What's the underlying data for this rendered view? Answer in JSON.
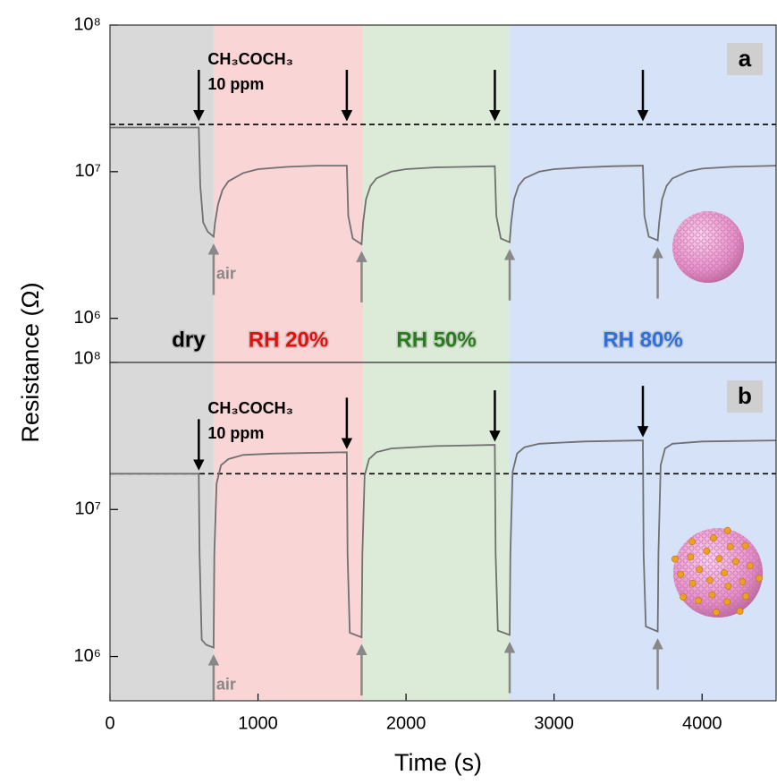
{
  "axis_labels": {
    "x": "Time (s)",
    "y": "Resistance (Ω)"
  },
  "chart_data": [
    {
      "type": "line",
      "panel_label": "a",
      "scale": "log",
      "xlim": [
        0,
        4500
      ],
      "ylim": [
        500000,
        100000000
      ],
      "yticks": [
        {
          "value": 1000000,
          "label": "10⁶"
        },
        {
          "value": 10000000,
          "label": "10⁷"
        },
        {
          "value": 100000000,
          "label": "10⁸"
        }
      ],
      "regions": [
        {
          "label": "dry",
          "start": 0,
          "end": 700,
          "color": "#d9d9d9",
          "label_color": "#000000"
        },
        {
          "label": "RH 20%",
          "start": 700,
          "end": 1710,
          "color": "#f9d5d5",
          "label_color": "#e01010"
        },
        {
          "label": "RH 50%",
          "start": 1710,
          "end": 2700,
          "color": "#dcebd8",
          "label_color": "#2a7a20"
        },
        {
          "label": "RH 80%",
          "start": 2700,
          "end": 4500,
          "color": "#d6e2f7",
          "label_color": "#2f6fd6"
        }
      ],
      "reference_line": 21000000,
      "gas_on": [
        600,
        1600,
        2600,
        3600
      ],
      "gas_off": [
        700,
        1700,
        2700,
        3700
      ],
      "annotations": {
        "gas": "CH₃COCH₃",
        "concentration": "10 ppm",
        "air": "air"
      },
      "x": [
        0,
        500,
        600,
        610,
        630,
        660,
        700,
        710,
        730,
        760,
        800,
        900,
        1000,
        1200,
        1400,
        1600,
        1610,
        1640,
        1700,
        1710,
        1730,
        1760,
        1800,
        1900,
        2000,
        2200,
        2400,
        2600,
        2610,
        2640,
        2700,
        2710,
        2730,
        2760,
        2800,
        2900,
        3000,
        3200,
        3400,
        3600,
        3610,
        3640,
        3700,
        3710,
        3730,
        3760,
        3800,
        3900,
        4000,
        4200,
        4500
      ],
      "series": [
        {
          "color": "#707070",
          "values": [
            20000000,
            20000000,
            20000000,
            8000000,
            4500000,
            3900000,
            3600000,
            4500000,
            6000000,
            7500000,
            8600000,
            9800000,
            10400000,
            10800000,
            11000000,
            11000000,
            5000000,
            3500000,
            3200000,
            4500000,
            6500000,
            8000000,
            9000000,
            10000000,
            10400000,
            10700000,
            10800000,
            10900000,
            5000000,
            3500000,
            3300000,
            4500000,
            6500000,
            8000000,
            9000000,
            10000000,
            10400000,
            10700000,
            10900000,
            11000000,
            5000000,
            3600000,
            3400000,
            4500000,
            6500000,
            8000000,
            9000000,
            10000000,
            10500000,
            10800000,
            11000000
          ]
        }
      ]
    },
    {
      "type": "line",
      "panel_label": "b",
      "scale": "log",
      "xlim": [
        0,
        4500
      ],
      "ylim": [
        500000,
        100000000
      ],
      "xticks": [
        0,
        1000,
        2000,
        3000,
        4000
      ],
      "yticks": [
        {
          "value": 1000000,
          "label": "10⁶"
        },
        {
          "value": 10000000,
          "label": "10⁷"
        },
        {
          "value": 100000000,
          "label": "10⁸"
        }
      ],
      "regions": [
        {
          "start": 0,
          "end": 700,
          "color": "#d9d9d9"
        },
        {
          "start": 700,
          "end": 1710,
          "color": "#f9d5d5"
        },
        {
          "start": 1710,
          "end": 2700,
          "color": "#dcebd8"
        },
        {
          "start": 2700,
          "end": 4500,
          "color": "#d6e2f7"
        }
      ],
      "reference_line": 17500000,
      "gas_on": [
        600,
        1600,
        2600,
        3600
      ],
      "gas_off": [
        700,
        1700,
        2700,
        3700
      ],
      "annotations": {
        "gas": "CH₃COCH₃",
        "concentration": "10 ppm",
        "air": "air"
      },
      "x": [
        0,
        600,
        605,
        620,
        650,
        700,
        705,
        720,
        750,
        800,
        900,
        1100,
        1600,
        1605,
        1620,
        1700,
        1705,
        1720,
        1750,
        1800,
        1900,
        2200,
        2600,
        2605,
        2620,
        2700,
        2705,
        2720,
        2750,
        2800,
        2900,
        3200,
        3600,
        3605,
        3620,
        3700,
        3705,
        3720,
        3750,
        3800,
        4000,
        4500
      ],
      "series": [
        {
          "color": "#707070",
          "values": [
            17500000,
            17500000,
            5000000,
            1300000,
            1200000,
            1150000,
            5000000,
            15000000,
            20000000,
            22000000,
            23500000,
            24000000,
            24500000,
            5000000,
            1450000,
            1350000,
            5000000,
            17000000,
            22000000,
            24500000,
            26000000,
            27000000,
            27500000,
            5000000,
            1500000,
            1400000,
            5000000,
            18000000,
            24000000,
            26500000,
            28000000,
            29000000,
            29500000,
            5000000,
            1600000,
            1480000,
            5000000,
            20000000,
            26000000,
            28000000,
            29000000,
            29500000
          ]
        }
      ]
    }
  ]
}
